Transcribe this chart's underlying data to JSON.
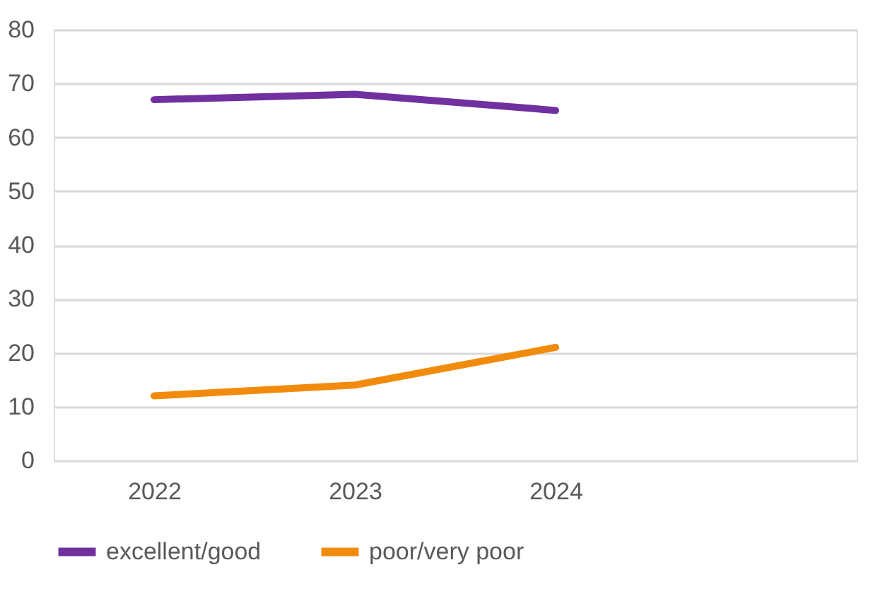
{
  "chart_data": {
    "type": "line",
    "categories": [
      "2022",
      "2023",
      "2024",
      null
    ],
    "series": [
      {
        "name": "excellent/good",
        "color": "#7030a0",
        "values": [
          67,
          68,
          65,
          null
        ]
      },
      {
        "name": "poor/very poor",
        "color": "#f28b0c",
        "values": [
          12,
          14,
          21,
          null
        ]
      }
    ],
    "ylim": [
      0,
      80
    ],
    "yticks": [
      0,
      10,
      20,
      30,
      40,
      50,
      60,
      70,
      80
    ],
    "grid": "y",
    "legend": "bottom",
    "marker": "none",
    "line_style": "solid"
  }
}
